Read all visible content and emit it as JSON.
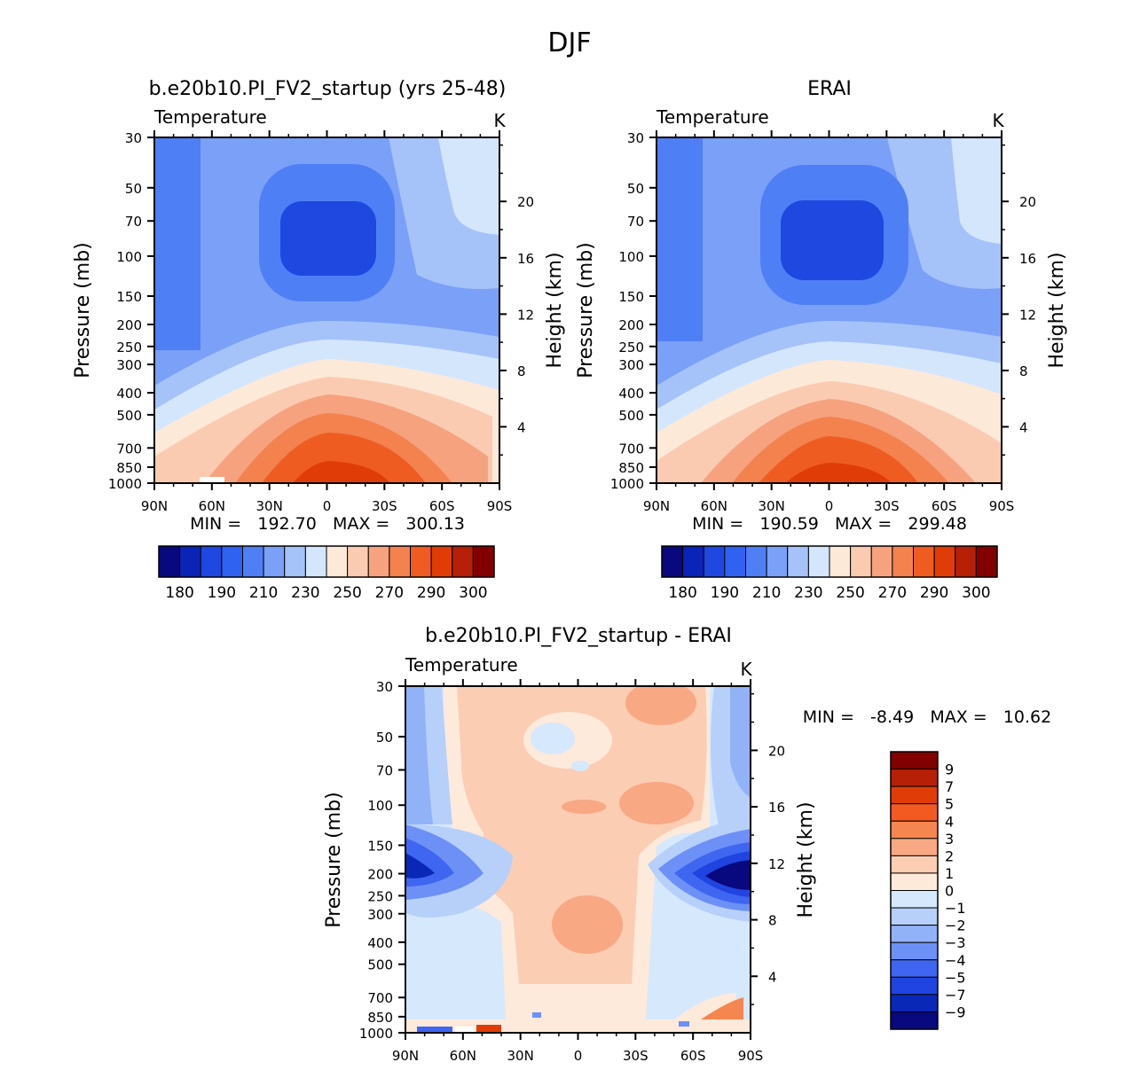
{
  "figure": {
    "title": "DJF"
  },
  "chart_data": [
    {
      "type": "heatmap",
      "id": "model",
      "title": "b.e20b10.PI_FV2_startup (yrs 25-48)",
      "subtitle_left": "Temperature",
      "subtitle_right": "K",
      "ylabel": "Pressure (mb)",
      "ylabel_right": "Height (km)",
      "x_ticks": [
        "90N",
        "60N",
        "30N",
        "0",
        "30S",
        "60S",
        "90S"
      ],
      "y_ticks": [
        "30",
        "50",
        "70",
        "100",
        "150",
        "200",
        "250",
        "300",
        "400",
        "500",
        "700",
        "850",
        "1000"
      ],
      "y_ticks_right": [
        "20",
        "16",
        "12",
        "8",
        "4"
      ],
      "stats": "MIN =   192.70   MAX =   300.13",
      "min": 192.7,
      "max": 300.13,
      "colorbar": {
        "labels": [
          "180",
          "190",
          "210",
          "230",
          "250",
          "270",
          "290",
          "300"
        ],
        "colors": [
          "#08087f",
          "#0a24b8",
          "#1e48e0",
          "#2f62f0",
          "#4f7ff5",
          "#7aa0f7",
          "#a5c2f9",
          "#d4e6fc",
          "#fde9d8",
          "#fbcbb1",
          "#f6a27e",
          "#f3824f",
          "#ef5c22",
          "#e03c08",
          "#b52006",
          "#820000"
        ]
      }
    },
    {
      "type": "heatmap",
      "id": "obs",
      "title": "ERAI",
      "subtitle_left": "Temperature",
      "subtitle_right": "K",
      "ylabel": "Pressure (mb)",
      "ylabel_right": "Height (km)",
      "x_ticks": [
        "90N",
        "60N",
        "30N",
        "0",
        "30S",
        "60S",
        "90S"
      ],
      "y_ticks": [
        "30",
        "50",
        "70",
        "100",
        "150",
        "200",
        "250",
        "300",
        "400",
        "500",
        "700",
        "850",
        "1000"
      ],
      "y_ticks_right": [
        "20",
        "16",
        "12",
        "8",
        "4"
      ],
      "stats": "MIN =   190.59   MAX =   299.48",
      "min": 190.59,
      "max": 299.48,
      "colorbar": {
        "labels": [
          "180",
          "190",
          "210",
          "230",
          "250",
          "270",
          "290",
          "300"
        ],
        "colors": [
          "#08087f",
          "#0a24b8",
          "#1e48e0",
          "#2f62f0",
          "#4f7ff5",
          "#7aa0f7",
          "#a5c2f9",
          "#d4e6fc",
          "#fde9d8",
          "#fbcbb1",
          "#f6a27e",
          "#f3824f",
          "#ef5c22",
          "#e03c08",
          "#b52006",
          "#820000"
        ]
      }
    },
    {
      "type": "heatmap",
      "id": "diff",
      "title": "b.e20b10.PI_FV2_startup - ERAI",
      "subtitle_left": "Temperature",
      "subtitle_right": "K",
      "ylabel": "Pressure (mb)",
      "ylabel_right": "Height (km)",
      "x_ticks": [
        "90N",
        "60N",
        "30N",
        "0",
        "30S",
        "60S",
        "90S"
      ],
      "y_ticks": [
        "30",
        "50",
        "70",
        "100",
        "150",
        "200",
        "250",
        "300",
        "400",
        "500",
        "700",
        "850",
        "1000"
      ],
      "y_ticks_right": [
        "20",
        "16",
        "12",
        "8",
        "4"
      ],
      "stats": "MIN =   -8.49   MAX =   10.62",
      "min": -8.49,
      "max": 10.62,
      "colorbar": {
        "labels": [
          "9",
          "7",
          "5",
          "4",
          "3",
          "2",
          "1",
          "0",
          "-1",
          "-2",
          "-3",
          "-4",
          "-5",
          "-7",
          "-9"
        ],
        "colors": [
          "#820000",
          "#b52006",
          "#e03c08",
          "#f35a22",
          "#f6864f",
          "#f9a884",
          "#fbcdb3",
          "#fdeadb",
          "#d6e8fc",
          "#b6d0fa",
          "#92b2f8",
          "#6d90f6",
          "#3f66f0",
          "#1f44df",
          "#0a28b8",
          "#08087f"
        ]
      }
    }
  ]
}
